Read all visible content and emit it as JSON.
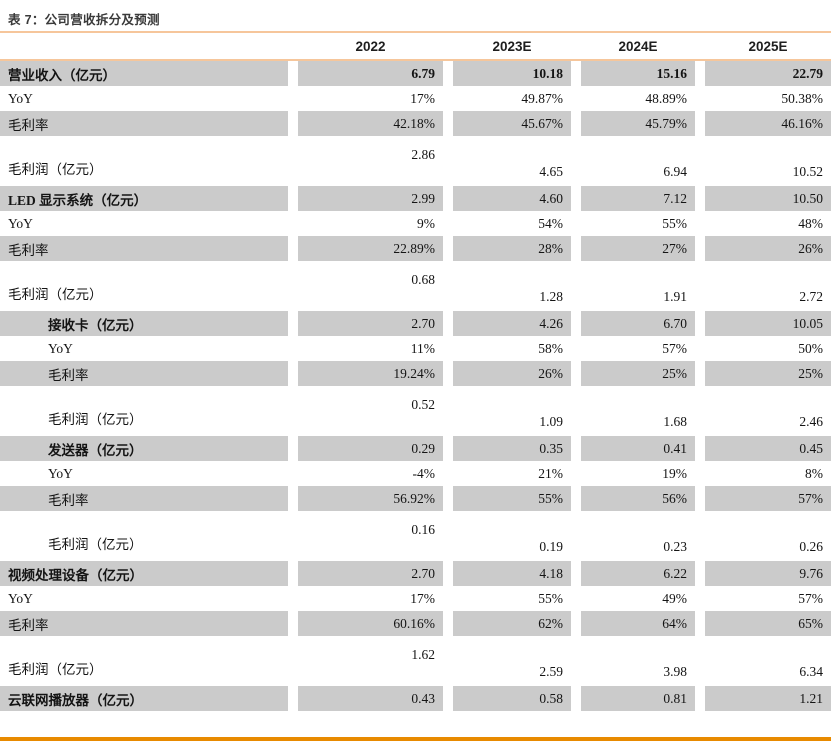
{
  "title": "表 7：公司营收拆分及预测",
  "colors": {
    "accent_light": "#f6c69b",
    "accent_strong": "#e88a00",
    "row_shade": "#cbcbcb"
  },
  "table": {
    "columns": [
      "2022",
      "2023E",
      "2024E",
      "2025E"
    ],
    "rows": [
      {
        "label": "营业收入（亿元）",
        "values": [
          "6.79",
          "10.18",
          "15.16",
          "22.79"
        ],
        "shaded": true,
        "bold_label": true,
        "bold_values": true,
        "indent": 0,
        "tall": false
      },
      {
        "label": "YoY",
        "values": [
          "17%",
          "49.87%",
          "48.89%",
          "50.38%"
        ],
        "shaded": false,
        "bold_label": false,
        "bold_values": false,
        "indent": 0,
        "tall": false
      },
      {
        "label": "毛利率",
        "values": [
          "42.18%",
          "45.67%",
          "45.79%",
          "46.16%"
        ],
        "shaded": true,
        "bold_label": false,
        "bold_values": false,
        "indent": 0,
        "tall": false
      },
      {
        "label": "毛利润（亿元）",
        "values": [
          "2.86",
          "4.65",
          "6.94",
          "10.52"
        ],
        "shaded": false,
        "bold_label": false,
        "bold_values": false,
        "indent": 0,
        "tall": true
      },
      {
        "label": "LED 显示系统（亿元）",
        "values": [
          "2.99",
          "4.60",
          "7.12",
          "10.50"
        ],
        "shaded": true,
        "bold_label": true,
        "bold_values": false,
        "indent": 0,
        "tall": false
      },
      {
        "label": "YoY",
        "values": [
          "9%",
          "54%",
          "55%",
          "48%"
        ],
        "shaded": false,
        "bold_label": false,
        "bold_values": false,
        "indent": 0,
        "tall": false
      },
      {
        "label": "毛利率",
        "values": [
          "22.89%",
          "28%",
          "27%",
          "26%"
        ],
        "shaded": true,
        "bold_label": false,
        "bold_values": false,
        "indent": 0,
        "tall": false
      },
      {
        "label": "毛利润（亿元）",
        "values": [
          "0.68",
          "1.28",
          "1.91",
          "2.72"
        ],
        "shaded": false,
        "bold_label": false,
        "bold_values": false,
        "indent": 0,
        "tall": true
      },
      {
        "label": "接收卡（亿元）",
        "values": [
          "2.70",
          "4.26",
          "6.70",
          "10.05"
        ],
        "shaded": true,
        "bold_label": true,
        "bold_values": false,
        "indent": 1,
        "tall": false
      },
      {
        "label": "YoY",
        "values": [
          "11%",
          "58%",
          "57%",
          "50%"
        ],
        "shaded": false,
        "bold_label": false,
        "bold_values": false,
        "indent": 1,
        "tall": false
      },
      {
        "label": "毛利率",
        "values": [
          "19.24%",
          "26%",
          "25%",
          "25%"
        ],
        "shaded": true,
        "bold_label": false,
        "bold_values": false,
        "indent": 1,
        "tall": false
      },
      {
        "label": "毛利润（亿元）",
        "values": [
          "0.52",
          "1.09",
          "1.68",
          "2.46"
        ],
        "shaded": false,
        "bold_label": false,
        "bold_values": false,
        "indent": 1,
        "tall": true
      },
      {
        "label": "发送器（亿元）",
        "values": [
          "0.29",
          "0.35",
          "0.41",
          "0.45"
        ],
        "shaded": true,
        "bold_label": true,
        "bold_values": false,
        "indent": 1,
        "tall": false
      },
      {
        "label": "YoY",
        "values": [
          "-4%",
          "21%",
          "19%",
          "8%"
        ],
        "shaded": false,
        "bold_label": false,
        "bold_values": false,
        "indent": 1,
        "tall": false
      },
      {
        "label": "毛利率",
        "values": [
          "56.92%",
          "55%",
          "56%",
          "57%"
        ],
        "shaded": true,
        "bold_label": false,
        "bold_values": false,
        "indent": 1,
        "tall": false
      },
      {
        "label": "毛利润（亿元）",
        "values": [
          "0.16",
          "0.19",
          "0.23",
          "0.26"
        ],
        "shaded": false,
        "bold_label": false,
        "bold_values": false,
        "indent": 1,
        "tall": true
      },
      {
        "label": "视频处理设备（亿元）",
        "values": [
          "2.70",
          "4.18",
          "6.22",
          "9.76"
        ],
        "shaded": true,
        "bold_label": true,
        "bold_values": false,
        "indent": 0,
        "tall": false
      },
      {
        "label": "YoY",
        "values": [
          "17%",
          "55%",
          "49%",
          "57%"
        ],
        "shaded": false,
        "bold_label": false,
        "bold_values": false,
        "indent": 0,
        "tall": false
      },
      {
        "label": "毛利率",
        "values": [
          "60.16%",
          "62%",
          "64%",
          "65%"
        ],
        "shaded": true,
        "bold_label": false,
        "bold_values": false,
        "indent": 0,
        "tall": false
      },
      {
        "label": "毛利润（亿元）",
        "values": [
          "1.62",
          "2.59",
          "3.98",
          "6.34"
        ],
        "shaded": false,
        "bold_label": false,
        "bold_values": false,
        "indent": 0,
        "tall": true
      },
      {
        "label": "云联网播放器（亿元）",
        "values": [
          "0.43",
          "0.58",
          "0.81",
          "1.21"
        ],
        "shaded": true,
        "bold_label": true,
        "bold_values": false,
        "indent": 0,
        "tall": false
      }
    ]
  }
}
